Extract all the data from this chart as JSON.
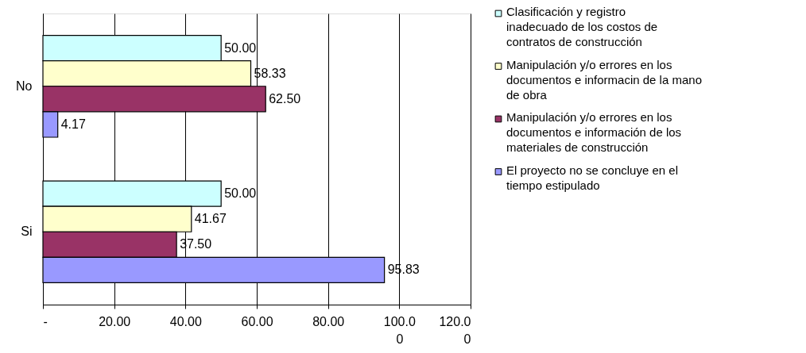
{
  "chart_data": {
    "type": "bar",
    "orientation": "horizontal",
    "categories": [
      "No",
      "Si"
    ],
    "series": [
      {
        "name": "Clasificación y registro inadecuado de los costos de contratos de construcción",
        "color": "#ccffff",
        "values": [
          50.0,
          50.0
        ],
        "value_labels": [
          "50.00",
          "50.00"
        ]
      },
      {
        "name": "Manipulación y/o errores en los documentos e informacin de la mano de obra",
        "color": "#ffffcc",
        "values": [
          58.33,
          41.67
        ],
        "value_labels": [
          "58.33",
          "41.67"
        ]
      },
      {
        "name": "Manipulación y/o errores en los documentos e información de los materiales de construcción",
        "color": "#993366",
        "values": [
          62.5,
          37.5
        ],
        "value_labels": [
          "62.50",
          "37.50"
        ]
      },
      {
        "name": "El proyecto no se concluye en el tiempo estipulado",
        "color": "#9999ff",
        "values": [
          4.17,
          95.83
        ],
        "value_labels": [
          "4.17",
          "95.83"
        ]
      }
    ],
    "xlim": [
      0,
      120
    ],
    "xticks": [
      {
        "value": 0,
        "label": "-"
      },
      {
        "value": 20,
        "label": "20.00"
      },
      {
        "value": 40,
        "label": "40.00"
      },
      {
        "value": 60,
        "label": "60.00"
      },
      {
        "value": 80,
        "label": "80.00"
      },
      {
        "value": 100,
        "label": "100.0\n0"
      },
      {
        "value": 120,
        "label": "120.0\n0"
      }
    ],
    "grid": "x",
    "legend": "right"
  }
}
